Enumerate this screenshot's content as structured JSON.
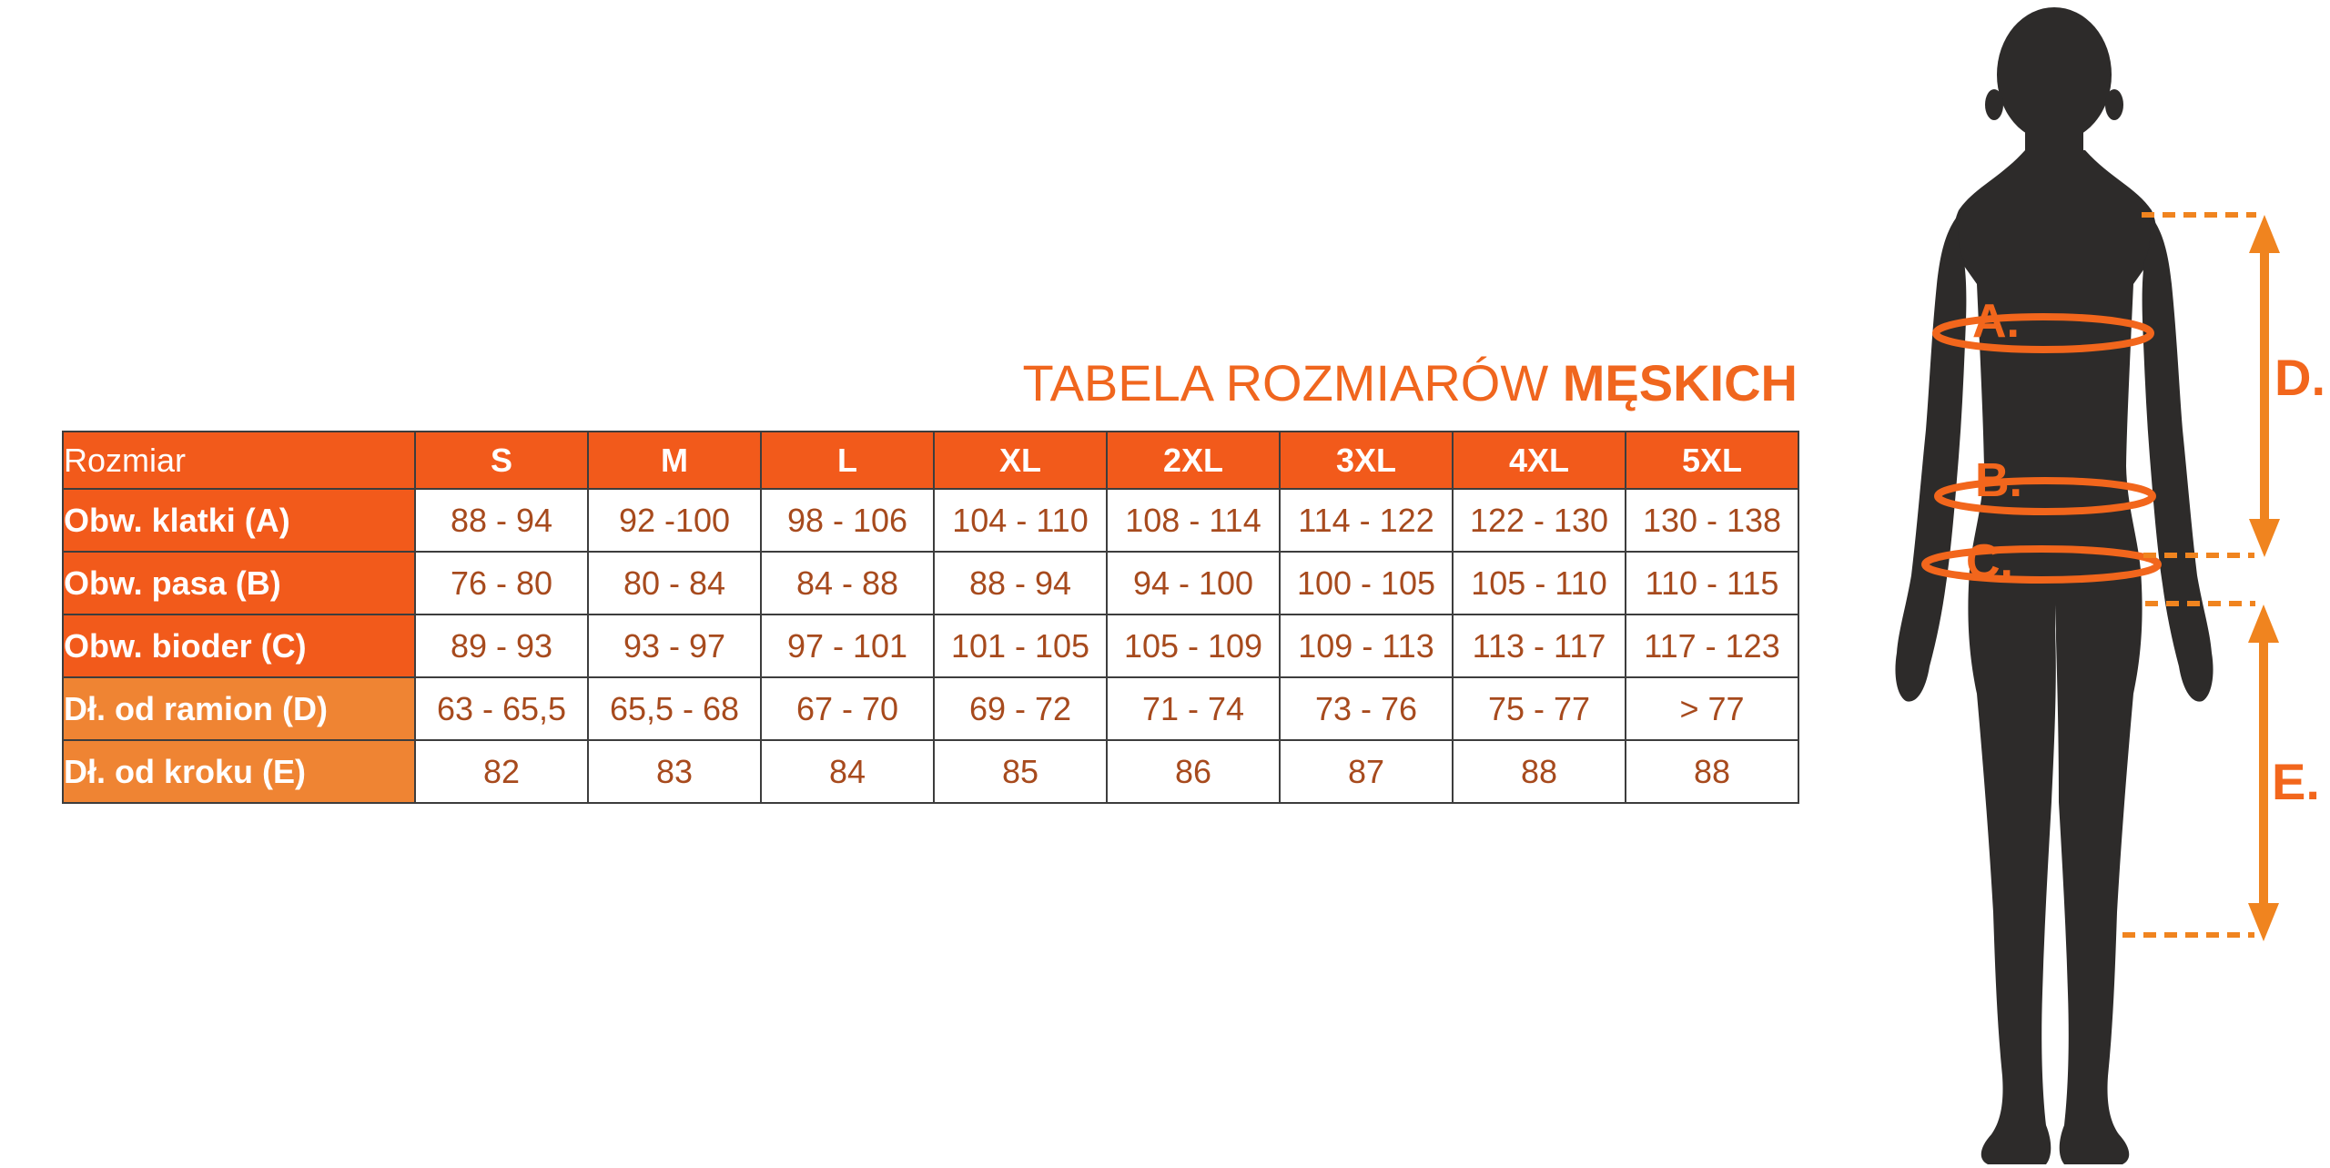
{
  "title": {
    "regular": "TABELA ROZMIARÓW ",
    "bold": "MĘSKICH"
  },
  "table": {
    "header": [
      "Rozmiar",
      "S",
      "M",
      "L",
      "XL",
      "2XL",
      "3XL",
      "4XL",
      "5XL"
    ],
    "rows": [
      {
        "label": "Obw. klatki (A)",
        "label_bg": "bright",
        "values": [
          "88 - 94",
          "92 -100",
          "98 - 106",
          "104 - 110",
          "108 - 114",
          "114 - 122",
          "122 - 130",
          "130 - 138"
        ]
      },
      {
        "label": "Obw. pasa (B)",
        "label_bg": "bright",
        "values": [
          "76 - 80",
          "80 - 84",
          "84 - 88",
          "88 - 94",
          "94 - 100",
          "100 - 105",
          "105 - 110",
          "110 - 115"
        ]
      },
      {
        "label": "Obw. bioder (C)",
        "label_bg": "bright",
        "values": [
          "89 - 93",
          "93 - 97",
          "97 - 101",
          "101 - 105",
          "105 - 109",
          "109 - 113",
          "113 - 117",
          "117 - 123"
        ]
      },
      {
        "label": "Dł. od ramion (D)",
        "label_bg": "light",
        "values": [
          "63 - 65,5",
          "65,5 - 68",
          "67 - 70",
          "69 - 72",
          "71 - 74",
          "73 - 76",
          "75 - 77",
          "> 77"
        ]
      },
      {
        "label": "Dł. od kroku (E)",
        "label_bg": "light",
        "values": [
          "82",
          "83",
          "84",
          "85",
          "86",
          "87",
          "88",
          "88"
        ]
      }
    ]
  },
  "figure": {
    "labels": {
      "a": "A.",
      "b": "B.",
      "c": "C.",
      "d": "D.",
      "e": "E."
    }
  },
  "colors": {
    "table_orange": "#F25A1B",
    "table_light_orange": "#EF8433",
    "title_orange": "#F0661E",
    "value_text": "#A74A1D",
    "border": "#3d3d3d",
    "silhouette": "#2D2B2A",
    "ellipse_orange": "#F2661C",
    "arrow_orange": "#F0841F"
  }
}
